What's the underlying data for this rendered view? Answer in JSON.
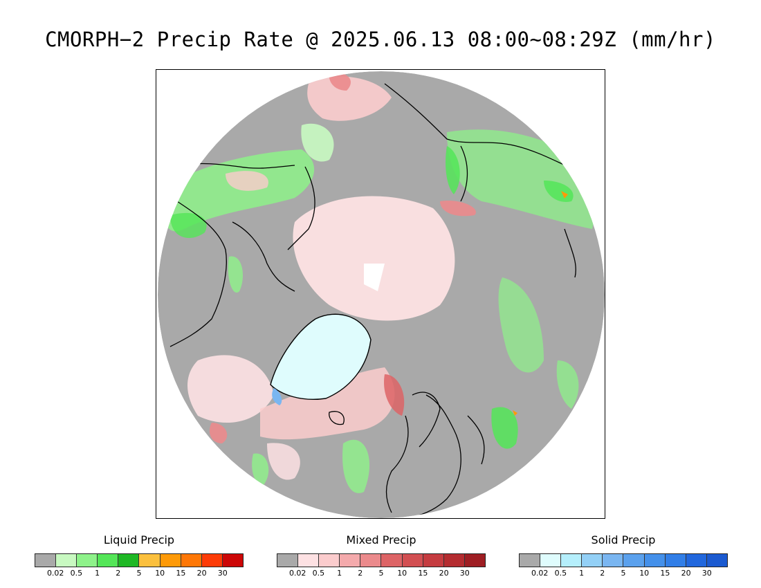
{
  "title": "CMORPH−2 Precip Rate @ 2025.06.13 08:00~08:29Z (mm/hr)",
  "map": {
    "projection": "north polar stereographic",
    "no_data_color": "#ffffff",
    "ocean_base_color": "#a9a9a9",
    "coastline_color": "#000000",
    "features": [
      "greenland-solid-precip",
      "arctic-ocean-mixed-precip",
      "north-america-liquid-precip",
      "eurasia-liquid-precip",
      "north-atlantic-mixed-precip",
      "scandinavia-coastline"
    ]
  },
  "legends": [
    {
      "title": "Liquid Precip",
      "colors": [
        "#a9a9a9",
        "#c8f9c1",
        "#8ef28a",
        "#54e658",
        "#1fb825",
        "#fbc03e",
        "#fe9a08",
        "#fe7706",
        "#fd3b07",
        "#cc0707"
      ],
      "ticks": [
        "0.02",
        "0.5",
        "1",
        "2",
        "5",
        "10",
        "15",
        "20",
        "30"
      ]
    },
    {
      "title": "Mixed Precip",
      "colors": [
        "#a9a9a9",
        "#fde1e3",
        "#fbcccd",
        "#f4aaac",
        "#eb8a8c",
        "#dd6466",
        "#d24f52",
        "#c53c40",
        "#b42c30",
        "#9e1e23"
      ],
      "ticks": [
        "0.02",
        "0.5",
        "1",
        "2",
        "5",
        "10",
        "15",
        "20",
        "30"
      ]
    },
    {
      "title": "Solid Precip",
      "colors": [
        "#a9a9a9",
        "#dffcfd",
        "#b5effc",
        "#93d0f6",
        "#7ab6f1",
        "#5ba1ed",
        "#4490ea",
        "#317ee7",
        "#2167dd",
        "#1b5ad0"
      ],
      "ticks": [
        "0.02",
        "0.5",
        "1",
        "2",
        "5",
        "10",
        "15",
        "20",
        "30"
      ]
    }
  ]
}
